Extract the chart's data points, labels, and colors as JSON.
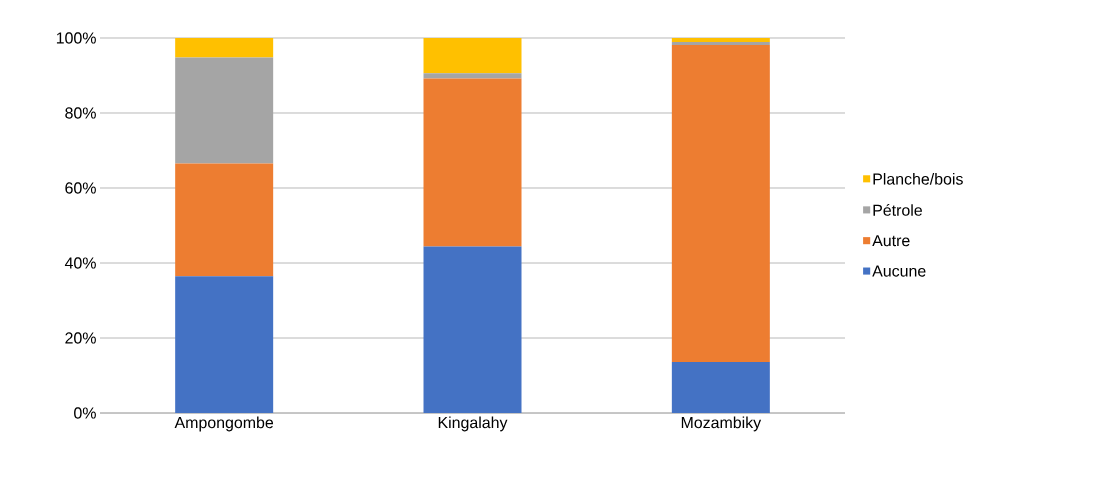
{
  "chart_data": {
    "type": "bar",
    "stacked": true,
    "categories": [
      "Ampongombe",
      "Kingalahy",
      "Mozambiky"
    ],
    "series": [
      {
        "name": "Aucune",
        "color": "#4472c4",
        "values": [
          36.5,
          44.4,
          13.6
        ]
      },
      {
        "name": "Autre",
        "color": "#ed7d31",
        "values": [
          30.0,
          44.8,
          84.5
        ]
      },
      {
        "name": "Pétrole",
        "color": "#a5a5a5",
        "values": [
          28.3,
          1.4,
          0.8
        ]
      },
      {
        "name": "Planche/bois",
        "color": "#ffc000",
        "values": [
          5.2,
          9.4,
          1.1
        ]
      }
    ],
    "ylim": [
      0,
      100
    ],
    "yticks": [
      {
        "value": 0,
        "label": "0%"
      },
      {
        "value": 20,
        "label": "20%"
      },
      {
        "value": 40,
        "label": "40%"
      },
      {
        "value": 60,
        "label": "60%"
      },
      {
        "value": 80,
        "label": "80%"
      },
      {
        "value": 100,
        "label": "100%"
      }
    ],
    "grid": "y",
    "legend": "right"
  }
}
